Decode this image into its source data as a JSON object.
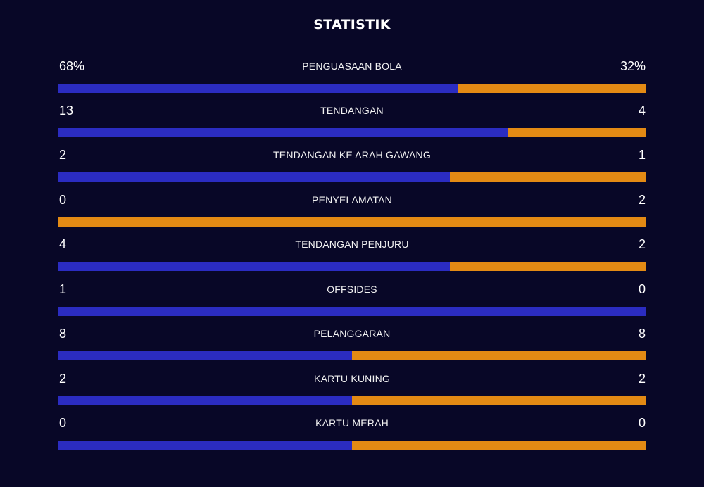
{
  "title": "STATISTIK",
  "colors": {
    "background": "#080727",
    "home_bar": "#2b2cc1",
    "away_bar": "#e38a14",
    "text": "#ffffff"
  },
  "stats": [
    {
      "label": "PENGUASAAN BOLA",
      "home_display": "68%",
      "away_display": "32%",
      "home_value": 68,
      "away_value": 32
    },
    {
      "label": "TENDANGAN",
      "home_display": "13",
      "away_display": "4",
      "home_value": 13,
      "away_value": 4
    },
    {
      "label": "TENDANGAN KE ARAH GAWANG",
      "home_display": "2",
      "away_display": "1",
      "home_value": 2,
      "away_value": 1
    },
    {
      "label": "PENYELAMATAN",
      "home_display": "0",
      "away_display": "2",
      "home_value": 0,
      "away_value": 2
    },
    {
      "label": "TENDANGAN PENJURU",
      "home_display": "4",
      "away_display": "2",
      "home_value": 4,
      "away_value": 2
    },
    {
      "label": "OFFSIDES",
      "home_display": "1",
      "away_display": "0",
      "home_value": 1,
      "away_value": 0
    },
    {
      "label": "PELANGGARAN",
      "home_display": "8",
      "away_display": "8",
      "home_value": 8,
      "away_value": 8
    },
    {
      "label": "KARTU KUNING",
      "home_display": "2",
      "away_display": "2",
      "home_value": 2,
      "away_value": 2
    },
    {
      "label": "KARTU MERAH",
      "home_display": "0",
      "away_display": "0",
      "home_value": 0,
      "away_value": 0
    }
  ]
}
